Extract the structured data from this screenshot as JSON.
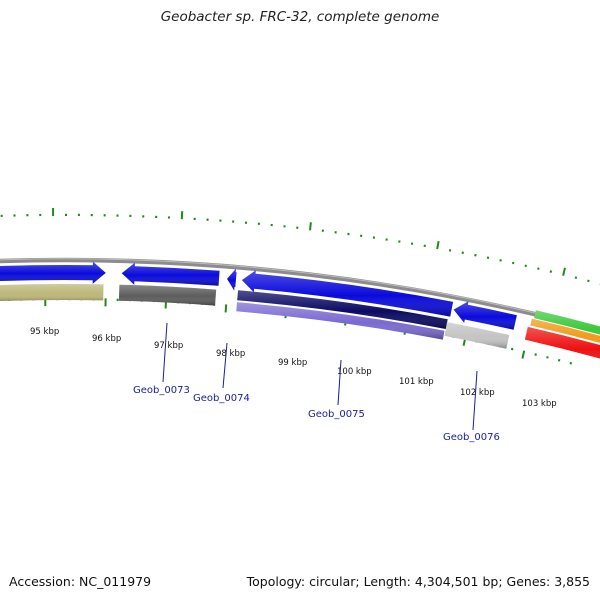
{
  "title": "Geobacter sp. FRC-32, complete genome",
  "accession": "Accession: NC_011979",
  "summary": "Topology: circular; Length: 4,304,501 bp; Genes: 3,855",
  "colors": {
    "backbone": "#8c8c8c",
    "tick": "#1e8a1e",
    "gene_blue": "#0a0adc",
    "gene_navy": "#0a0a64",
    "gene_purple": "#7a6ad2",
    "olive": "#bcb878",
    "dark_gray": "#5c5c5c",
    "light_gray": "#c4c4c4",
    "green": "#3cc83c",
    "orange": "#f09a18",
    "red": "#ee1010",
    "label_blue": "#1a1aa6"
  },
  "kbp_labels": [
    "95 kbp",
    "96 kbp",
    "97 kbp",
    "98 kbp",
    "99 kbp",
    "100 kbp",
    "101 kbp",
    "102 kbp",
    "103 kbp"
  ],
  "gene_labels": [
    "Geob_0073",
    "Geob_0074",
    "Geob_0075",
    "Geob_0076"
  ]
}
